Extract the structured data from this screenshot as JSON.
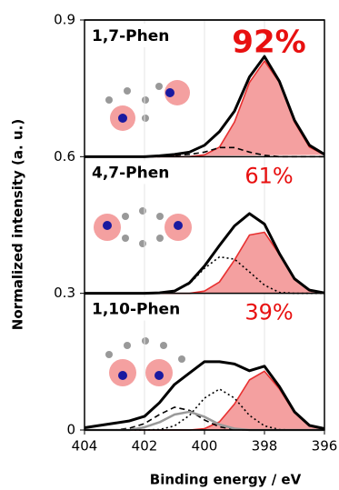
{
  "chart_data": {
    "type": "line",
    "xlabel": "Binding energy / eV",
    "ylabel": "Normalized intensity (a. u.)",
    "xlim": [
      404,
      396
    ],
    "ylim": [
      0,
      0.9
    ],
    "xticks": [
      404,
      402,
      400,
      398,
      396
    ],
    "yticks": [
      0,
      0.3,
      0.6,
      0.9
    ],
    "x": [
      404,
      403.5,
      403,
      402.5,
      402,
      401.5,
      401,
      400.5,
      400,
      399.5,
      399,
      398.5,
      398,
      397.5,
      397,
      396.5,
      396
    ],
    "annotations": [
      {
        "label": "1,7-Phen",
        "percent": "92%"
      },
      {
        "label": "4,7-Phen",
        "percent": "61%"
      },
      {
        "label": "1,10-Phen",
        "percent": "39%"
      }
    ],
    "series": [
      {
        "color": "#e83030",
        "fill": "#f4a0a0",
        "values": [
          0.6,
          0.6,
          0.6,
          0.6,
          0.6,
          0.6,
          0.6,
          0.6,
          0.604,
          0.621,
          0.676,
          0.763,
          0.81,
          0.763,
          0.676,
          0.621,
          0.604
        ]
      },
      {
        "color": "#000000",
        "dash": "dash",
        "values": [
          0.6,
          0.6,
          0.6,
          0.6,
          0.6,
          0.6,
          0.603,
          0.605,
          0.61,
          0.62,
          0.62,
          0.61,
          0.603,
          0.6,
          0.6,
          0.6,
          0.6
        ]
      },
      {
        "color": "#000000",
        "width": 3,
        "values": [
          0.6,
          0.6,
          0.6,
          0.6,
          0.6,
          0.602,
          0.605,
          0.61,
          0.625,
          0.655,
          0.7,
          0.775,
          0.82,
          0.765,
          0.68,
          0.625,
          0.605
        ]
      },
      {
        "color": "#e83030",
        "fill": "#f4a0a0",
        "values": [
          0.3,
          0.3,
          0.3,
          0.3,
          0.3,
          0.3,
          0.3,
          0.3,
          0.305,
          0.325,
          0.373,
          0.428,
          0.434,
          0.385,
          0.332,
          0.307,
          0.301
        ]
      },
      {
        "color": "#000000",
        "dash": "dot",
        "values": [
          0.3,
          0.3,
          0.3,
          0.3,
          0.3,
          0.301,
          0.305,
          0.321,
          0.355,
          0.38,
          0.375,
          0.347,
          0.318,
          0.302,
          0.3,
          0.3,
          0.3
        ]
      },
      {
        "color": "#000000",
        "width": 3,
        "values": [
          0.3,
          0.3,
          0.3,
          0.3,
          0.3,
          0.301,
          0.305,
          0.323,
          0.36,
          0.405,
          0.448,
          0.475,
          0.452,
          0.387,
          0.332,
          0.307,
          0.301
        ]
      },
      {
        "color": "#e83030",
        "fill": "#f4a0a0",
        "values": [
          0,
          0,
          0,
          0,
          0,
          0,
          0,
          0,
          0.003,
          0.018,
          0.057,
          0.11,
          0.129,
          0.09,
          0.038,
          0.009,
          0.001
        ]
      },
      {
        "color": "#000000",
        "dash": "dot",
        "values": [
          0,
          0,
          0,
          0,
          0,
          0.001,
          0.009,
          0.032,
          0.07,
          0.09,
          0.07,
          0.032,
          0.009,
          0.001,
          0,
          0,
          0
        ]
      },
      {
        "color": "#000000",
        "dash": "dash",
        "values": [
          0,
          0,
          0,
          0.004,
          0.014,
          0.034,
          0.05,
          0.043,
          0.022,
          0.007,
          0.001,
          0,
          0,
          0,
          0,
          0,
          0
        ]
      },
      {
        "color": "#999999",
        "width": 2.5,
        "values": [
          0,
          0,
          0,
          0,
          0.006,
          0.017,
          0.034,
          0.04,
          0.029,
          0.012,
          0.003,
          0,
          0,
          0,
          0,
          0,
          0
        ]
      },
      {
        "color": "#000000",
        "width": 3,
        "values": [
          0.005,
          0.01,
          0.015,
          0.02,
          0.03,
          0.06,
          0.1,
          0.125,
          0.15,
          0.15,
          0.145,
          0.13,
          0.14,
          0.095,
          0.04,
          0.01,
          0.003
        ]
      }
    ]
  }
}
